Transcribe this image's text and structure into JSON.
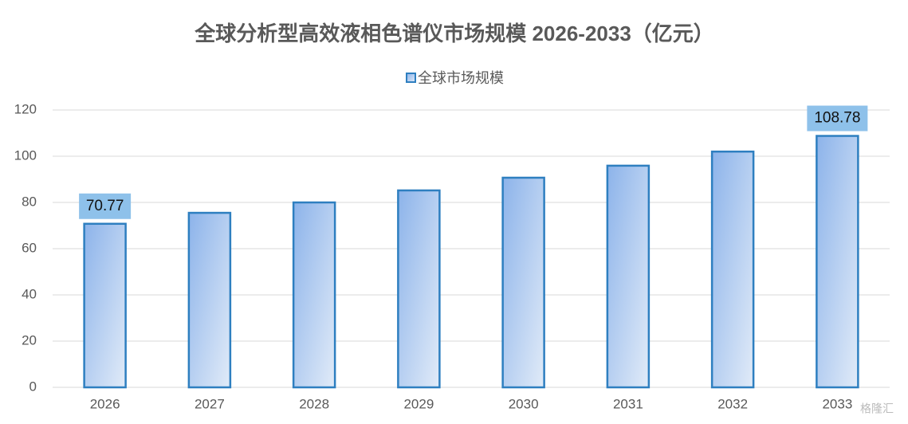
{
  "chart_data": {
    "type": "bar",
    "title": "全球分析型高效液相色谱仪市场规模 2026-2033（亿元）",
    "categories": [
      "2026",
      "2027",
      "2028",
      "2029",
      "2030",
      "2031",
      "2032",
      "2033"
    ],
    "series": [
      {
        "name": "全球市场规模",
        "color": "#2e7fc0",
        "values": [
          70.77,
          75.5,
          80,
          85.2,
          90.7,
          95.9,
          102,
          108.78
        ],
        "value_labels": [
          "70.77",
          null,
          null,
          null,
          null,
          null,
          null,
          "108.78"
        ]
      }
    ],
    "ylim": [
      0,
      120
    ],
    "yticks": [
      0,
      20,
      40,
      60,
      80,
      100,
      120
    ],
    "grid": true,
    "legend": "top",
    "watermark": "格隆汇"
  }
}
